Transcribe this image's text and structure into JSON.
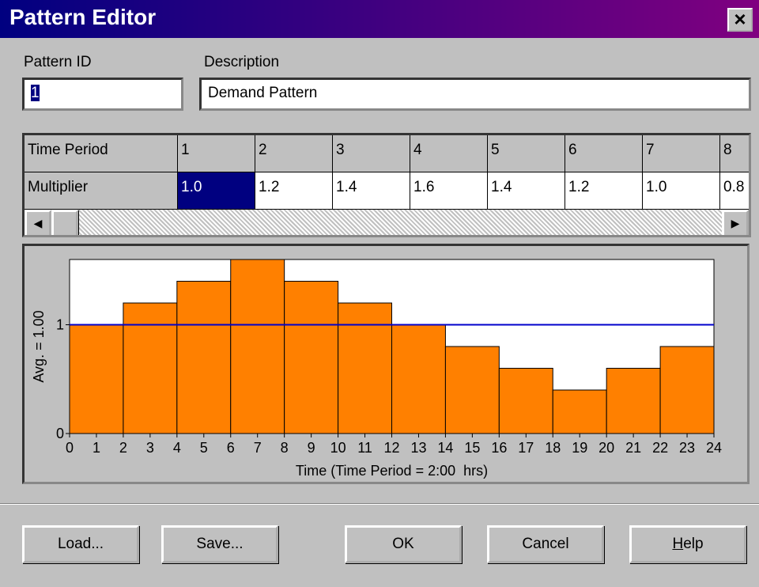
{
  "window": {
    "title": "Pattern Editor",
    "close": "×"
  },
  "fields": {
    "pattern_id": {
      "label": "Pattern ID",
      "value": "1"
    },
    "description": {
      "label": "Description",
      "value": "Demand Pattern"
    }
  },
  "grid": {
    "header_label": "Time Period",
    "columns": [
      "1",
      "2",
      "3",
      "4",
      "5",
      "6",
      "7",
      "8"
    ],
    "row_label": "Multiplier",
    "values": [
      "1.0",
      "1.2",
      "1.4",
      "1.6",
      "1.4",
      "1.2",
      "1.0",
      "0.8"
    ]
  },
  "chart_data": {
    "type": "histogram",
    "bins": [
      0,
      2,
      4,
      6,
      8,
      10,
      12,
      14,
      16,
      18,
      20,
      22,
      24
    ],
    "values": [
      1.0,
      1.2,
      1.4,
      1.6,
      1.4,
      1.2,
      1.0,
      0.8,
      0.6,
      0.4,
      0.6,
      0.8
    ],
    "color": "#ff8000",
    "xlim": [
      0,
      24
    ],
    "xticks": [
      0,
      1,
      2,
      3,
      4,
      5,
      6,
      7,
      8,
      9,
      10,
      11,
      12,
      13,
      14,
      15,
      16,
      17,
      18,
      19,
      20,
      21,
      22,
      23,
      24
    ],
    "ylim": [
      0,
      1.6
    ],
    "yticks": [
      0,
      1
    ],
    "y_label": "Avg. = 1.00",
    "reference_line": 1,
    "reference_color": "#0000cc",
    "x_label": "Time (Time Period = 2:00  hrs)"
  },
  "buttons": [
    "Load...",
    "Save...",
    "OK",
    "Cancel",
    "Help"
  ]
}
